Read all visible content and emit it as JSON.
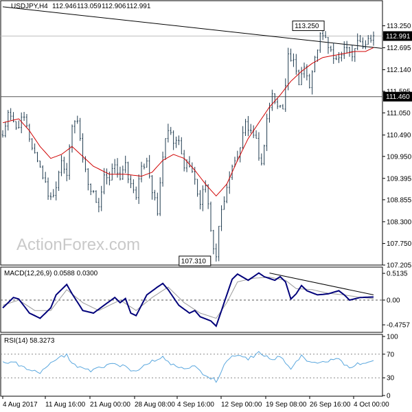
{
  "colors": {
    "candle": "#1f3b4f",
    "ma": "#d00000",
    "macd": "#00007a",
    "signal": "#9a9a9a",
    "rsi": "#5aa7de",
    "border": "#000000",
    "level": "#555555"
  },
  "watermark": "ActionForex.com",
  "chart_data": [
    {
      "type": "candlestick",
      "title": "USDJPY,H4",
      "ohlc": [
        "112.946",
        "113.059",
        "112.906",
        "112.991"
      ],
      "current_price": 112.991,
      "current_price_label": "112.991",
      "ylim": [
        107.205,
        113.52
      ],
      "yticks": [
        113.25,
        112.695,
        112.14,
        111.595,
        111.05,
        110.49,
        109.95,
        109.395,
        108.855,
        108.3,
        107.75,
        107.205
      ],
      "ytick_labels": [
        "113.250",
        "112.695",
        "112.140",
        "111.595",
        "111.050",
        "110.490",
        "109.950",
        "109.395",
        "108.855",
        "108.300",
        "107.750",
        "107.205"
      ],
      "horizontal_level": 111.46,
      "horizontal_level_label": "111.460",
      "annotations": [
        {
          "text": "113.250",
          "value": 113.25
        },
        {
          "text": "107.310",
          "value": 107.31
        }
      ],
      "trendline": {
        "from": 113.73,
        "to": 112.68
      },
      "xtick_labels": [
        "4 Aug 2017",
        "11 Aug 16:00",
        "21 Aug 00:00",
        "28 Aug 08:00",
        "4 Sep 16:00",
        "12 Sep 00:00",
        "19 Sep 08:00",
        "26 Sep 16:00",
        "4 Oct 00:00"
      ],
      "close_path": [
        [
          0,
          110.5
        ],
        [
          2,
          111.0
        ],
        [
          5,
          110.7
        ],
        [
          8,
          110.9
        ],
        [
          11,
          110.2
        ],
        [
          14,
          109.7
        ],
        [
          17,
          109.0
        ],
        [
          19,
          108.95
        ],
        [
          22,
          109.9
        ],
        [
          24,
          109.5
        ],
        [
          26,
          110.7
        ],
        [
          28,
          110.9
        ],
        [
          30,
          109.9
        ],
        [
          32,
          109.3
        ],
        [
          34,
          109.0
        ],
        [
          36,
          108.7
        ],
        [
          38,
          109.4
        ],
        [
          40,
          109.3
        ],
        [
          42,
          109.8
        ],
        [
          44,
          109.4
        ],
        [
          46,
          109.7
        ],
        [
          48,
          109.2
        ],
        [
          50,
          109.0
        ],
        [
          52,
          109.6
        ],
        [
          54,
          109.9
        ],
        [
          56,
          109.1
        ],
        [
          58,
          108.5
        ],
        [
          60,
          110.0
        ],
        [
          62,
          110.6
        ],
        [
          64,
          110.3
        ],
        [
          66,
          110.3
        ],
        [
          68,
          109.7
        ],
        [
          70,
          109.8
        ],
        [
          72,
          109.3
        ],
        [
          74,
          108.8
        ],
        [
          76,
          109.3
        ],
        [
          78,
          108.0
        ],
        [
          80,
          107.4
        ],
        [
          81,
          108.2
        ],
        [
          83,
          108.8
        ],
        [
          85,
          109.5
        ],
        [
          87,
          109.8
        ],
        [
          89,
          110.2
        ],
        [
          91,
          110.8
        ],
        [
          93,
          110.5
        ],
        [
          95,
          110.3
        ],
        [
          97,
          109.7
        ],
        [
          99,
          110.9
        ],
        [
          101,
          111.5
        ],
        [
          103,
          111.2
        ],
        [
          105,
          111.2
        ],
        [
          107,
          112.5
        ],
        [
          109,
          112.3
        ],
        [
          111,
          111.8
        ],
        [
          113,
          112.3
        ],
        [
          115,
          111.7
        ],
        [
          117,
          112.4
        ],
        [
          119,
          113.0
        ],
        [
          121,
          112.9
        ],
        [
          123,
          112.6
        ],
        [
          125,
          112.3
        ],
        [
          127,
          112.6
        ],
        [
          129,
          112.8
        ],
        [
          131,
          112.5
        ],
        [
          133,
          112.9
        ],
        [
          135,
          112.7
        ],
        [
          137,
          112.9
        ],
        [
          139,
          113.05
        ]
      ],
      "ma_path": [
        [
          0,
          110.8
        ],
        [
          6,
          110.9
        ],
        [
          10,
          110.6
        ],
        [
          14,
          110.2
        ],
        [
          18,
          109.9
        ],
        [
          22,
          110.0
        ],
        [
          26,
          110.2
        ],
        [
          30,
          109.95
        ],
        [
          34,
          109.7
        ],
        [
          40,
          109.5
        ],
        [
          46,
          109.5
        ],
        [
          52,
          109.45
        ],
        [
          56,
          109.55
        ],
        [
          60,
          109.85
        ],
        [
          64,
          110.0
        ],
        [
          68,
          109.9
        ],
        [
          72,
          109.6
        ],
        [
          76,
          109.25
        ],
        [
          80,
          108.95
        ],
        [
          84,
          109.25
        ],
        [
          88,
          109.85
        ],
        [
          92,
          110.4
        ],
        [
          96,
          110.8
        ],
        [
          100,
          111.2
        ],
        [
          104,
          111.5
        ],
        [
          108,
          111.85
        ],
        [
          112,
          112.1
        ],
        [
          116,
          112.3
        ],
        [
          120,
          112.45
        ],
        [
          124,
          112.5
        ],
        [
          128,
          112.55
        ],
        [
          132,
          112.6
        ],
        [
          136,
          112.6
        ],
        [
          139,
          112.7
        ]
      ]
    },
    {
      "type": "line",
      "title": "MACD(12,26,9) 0.0588 0.0300",
      "ylim": [
        -0.62,
        0.62
      ],
      "ytick_labels": [
        "0.5135",
        "0.00",
        "-0.4757"
      ],
      "yticks": [
        0.5135,
        0.0,
        -0.4757
      ],
      "zero_line": 0.0,
      "series": [
        {
          "role": "macd",
          "points": [
            [
              0,
              -0.15
            ],
            [
              4,
              0.05
            ],
            [
              6,
              0.02
            ],
            [
              10,
              -0.25
            ],
            [
              14,
              -0.35
            ],
            [
              18,
              -0.15
            ],
            [
              20,
              0.1
            ],
            [
              24,
              0.3
            ],
            [
              26,
              0.12
            ],
            [
              30,
              -0.2
            ],
            [
              34,
              -0.25
            ],
            [
              38,
              -0.1
            ],
            [
              42,
              0.05
            ],
            [
              44,
              -0.05
            ],
            [
              46,
              0.03
            ],
            [
              48,
              -0.25
            ],
            [
              50,
              -0.3
            ],
            [
              54,
              0.1
            ],
            [
              58,
              0.25
            ],
            [
              60,
              0.32
            ],
            [
              62,
              0.2
            ],
            [
              66,
              -0.1
            ],
            [
              70,
              -0.25
            ],
            [
              72,
              -0.2
            ],
            [
              74,
              -0.32
            ],
            [
              78,
              -0.4
            ],
            [
              80,
              -0.5
            ],
            [
              84,
              0.1
            ],
            [
              86,
              0.4
            ],
            [
              88,
              0.5
            ],
            [
              92,
              0.38
            ],
            [
              96,
              0.52
            ],
            [
              98,
              0.45
            ],
            [
              102,
              0.38
            ],
            [
              104,
              0.45
            ],
            [
              106,
              0.35
            ],
            [
              108,
              0.02
            ],
            [
              110,
              0.12
            ],
            [
              112,
              0.28
            ],
            [
              114,
              0.18
            ],
            [
              118,
              0.1
            ],
            [
              122,
              0.12
            ],
            [
              126,
              0.18
            ],
            [
              128,
              0.1
            ],
            [
              130,
              0.0
            ],
            [
              134,
              0.05
            ],
            [
              139,
              0.06
            ]
          ]
        },
        {
          "role": "signal",
          "points": [
            [
              0,
              -0.1
            ],
            [
              6,
              0.0
            ],
            [
              12,
              -0.2
            ],
            [
              18,
              -0.2
            ],
            [
              24,
              0.2
            ],
            [
              30,
              -0.05
            ],
            [
              36,
              -0.2
            ],
            [
              44,
              0.0
            ],
            [
              50,
              -0.2
            ],
            [
              56,
              0.05
            ],
            [
              62,
              0.25
            ],
            [
              68,
              -0.05
            ],
            [
              74,
              -0.25
            ],
            [
              80,
              -0.35
            ],
            [
              84,
              -0.05
            ],
            [
              88,
              0.35
            ],
            [
              94,
              0.42
            ],
            [
              100,
              0.44
            ],
            [
              106,
              0.38
            ],
            [
              110,
              0.22
            ],
            [
              116,
              0.2
            ],
            [
              122,
              0.13
            ],
            [
              128,
              0.1
            ],
            [
              134,
              0.05
            ],
            [
              139,
              0.03
            ]
          ]
        }
      ],
      "trendline": {
        "from": 0.52,
        "to": 0.1
      }
    },
    {
      "type": "line",
      "title": "RSI(14) 58.3273",
      "ylim": [
        0,
        100
      ],
      "yticks": [
        100,
        70,
        30,
        0
      ],
      "ytick_labels": [
        "100",
        "70",
        "30",
        "0"
      ],
      "series": [
        {
          "role": "rsi",
          "points": [
            [
              0,
              55
            ],
            [
              4,
              58
            ],
            [
              6,
              50
            ],
            [
              10,
              42
            ],
            [
              14,
              38
            ],
            [
              18,
              55
            ],
            [
              20,
              62
            ],
            [
              24,
              68
            ],
            [
              26,
              55
            ],
            [
              30,
              45
            ],
            [
              34,
              42
            ],
            [
              38,
              50
            ],
            [
              42,
              56
            ],
            [
              44,
              48
            ],
            [
              46,
              52
            ],
            [
              48,
              42
            ],
            [
              50,
              40
            ],
            [
              54,
              55
            ],
            [
              58,
              62
            ],
            [
              60,
              65
            ],
            [
              62,
              55
            ],
            [
              66,
              48
            ],
            [
              70,
              45
            ],
            [
              72,
              50
            ],
            [
              74,
              40
            ],
            [
              78,
              30
            ],
            [
              80,
              25
            ],
            [
              84,
              58
            ],
            [
              86,
              65
            ],
            [
              88,
              70
            ],
            [
              92,
              62
            ],
            [
              96,
              72
            ],
            [
              98,
              66
            ],
            [
              102,
              62
            ],
            [
              104,
              68
            ],
            [
              106,
              55
            ],
            [
              108,
              45
            ],
            [
              110,
              58
            ],
            [
              112,
              66
            ],
            [
              114,
              56
            ],
            [
              118,
              54
            ],
            [
              122,
              58
            ],
            [
              126,
              62
            ],
            [
              128,
              54
            ],
            [
              130,
              48
            ],
            [
              134,
              55
            ],
            [
              139,
              60
            ]
          ]
        }
      ]
    }
  ]
}
